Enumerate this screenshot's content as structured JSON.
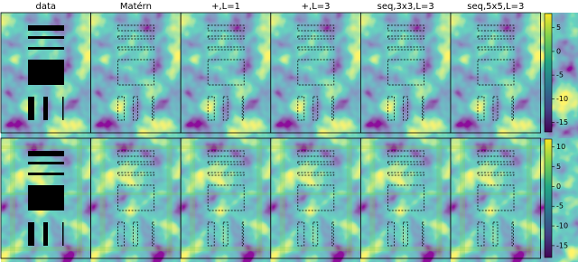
{
  "chart_data": [
    {
      "type": "image-grid",
      "panel_titles": [
        "data",
        "Matérn",
        "+,L=1",
        "+,L=3",
        "seq,3x3,L=3",
        "seq,5x5,L=3"
      ],
      "colormap": "viridis",
      "ylim": [
        -17,
        8
      ],
      "yticks": [
        5,
        0,
        -5,
        -10,
        -15
      ]
    },
    {
      "type": "image-grid",
      "colormap": "viridis",
      "ylim": [
        -18,
        12
      ],
      "yticks": [
        10,
        5,
        0,
        -5,
        -10,
        -15
      ]
    }
  ]
}
